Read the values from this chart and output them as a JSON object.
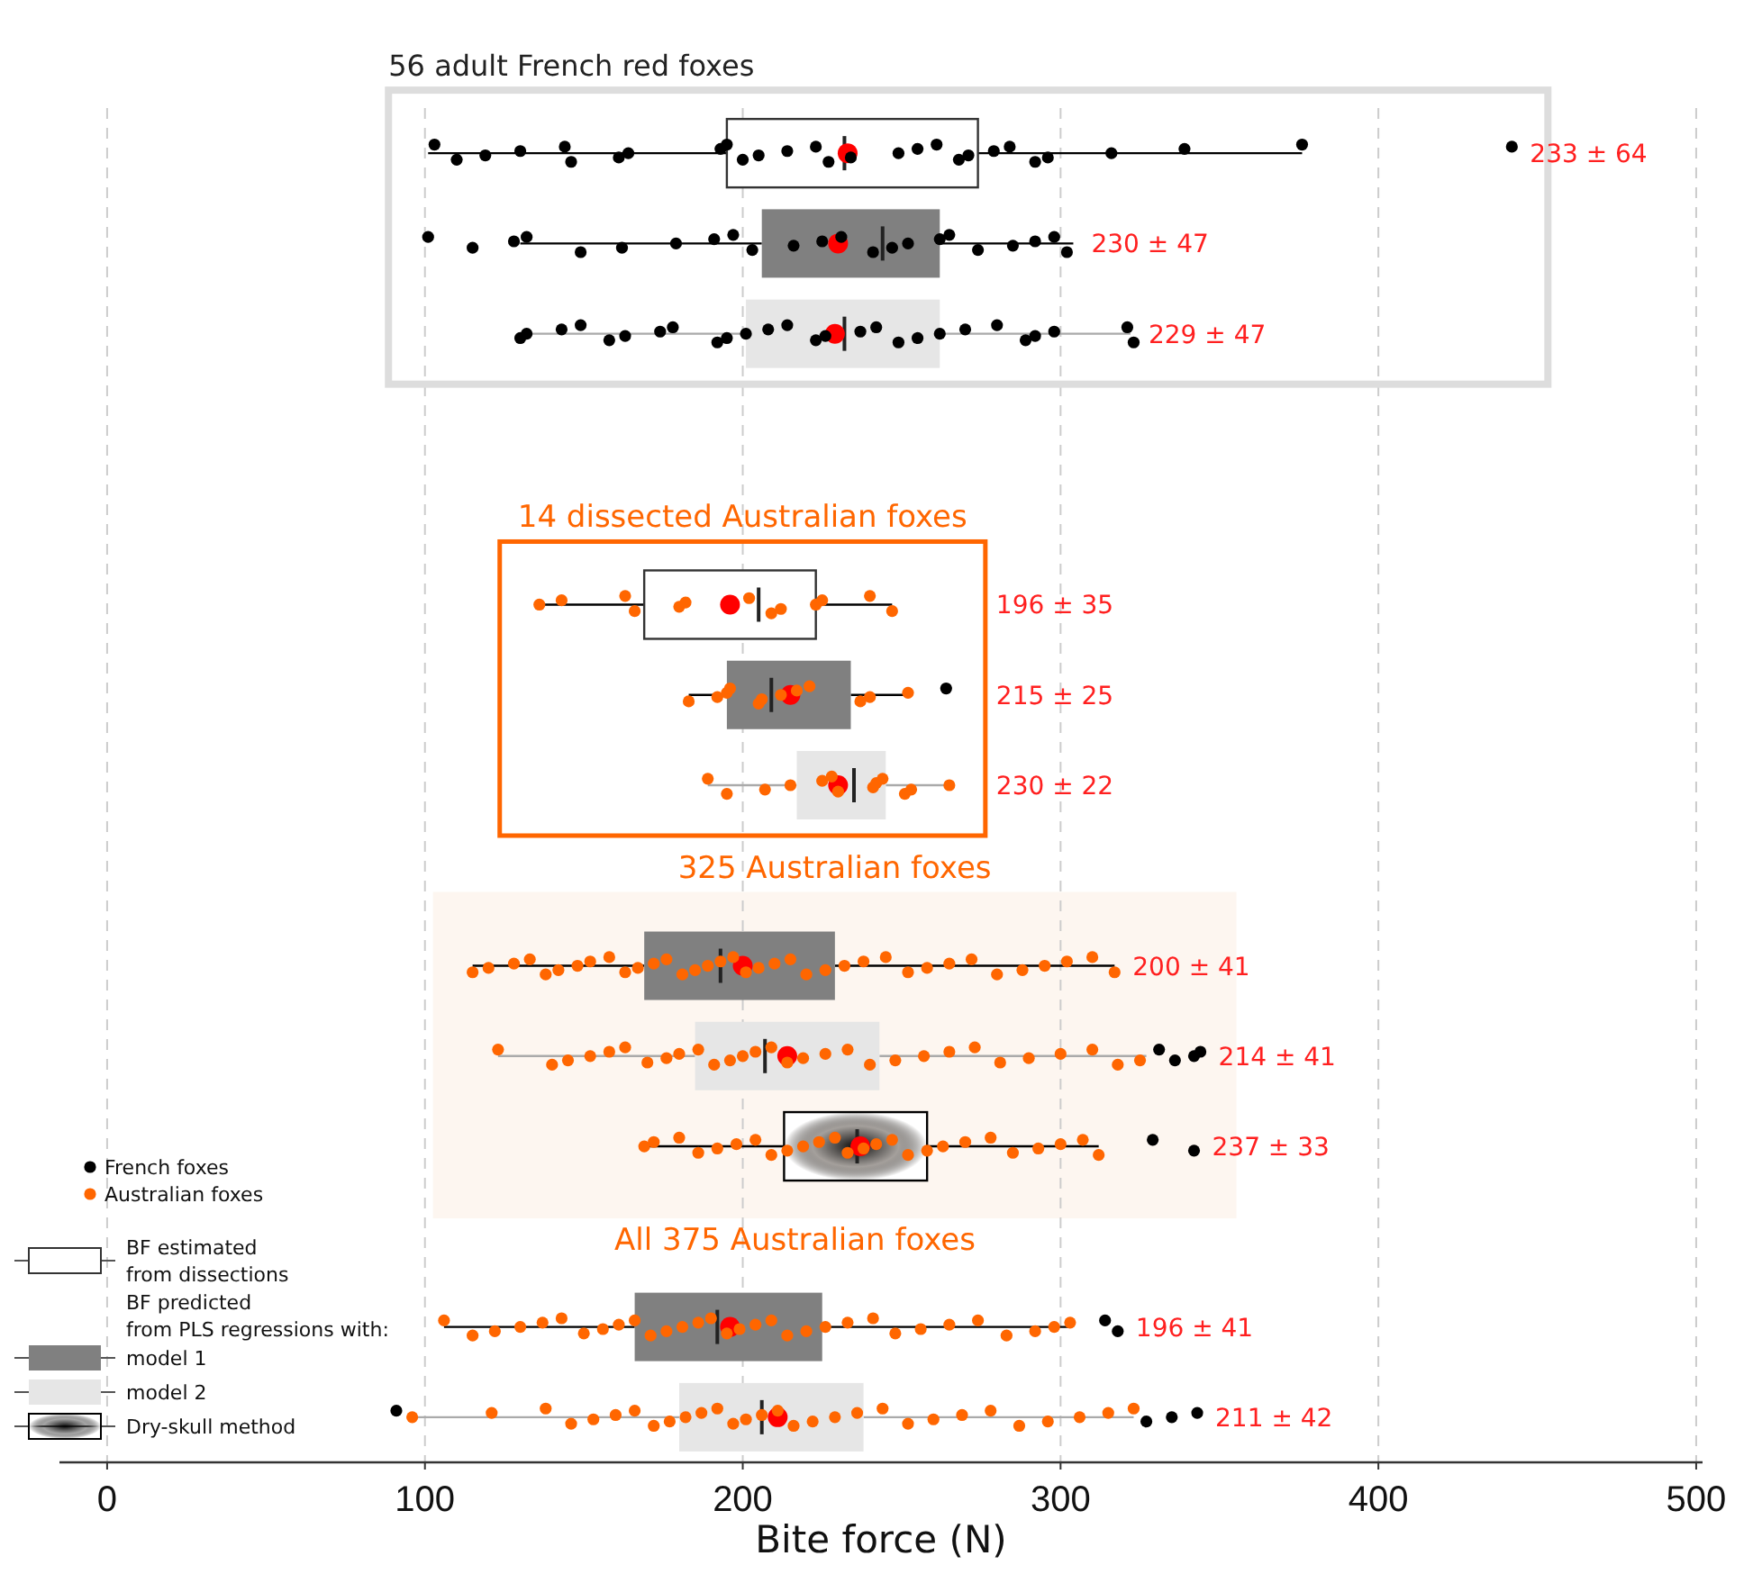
{
  "chart_data": {
    "type": "box",
    "orientation": "horizontal",
    "xlabel": "Bite force (N)",
    "categories": [
      null,
      null,
      null,
      null,
      null,
      null,
      null,
      null,
      null,
      null,
      null,
      null,
      null,
      null,
      null
    ],
    "xlim": [
      -15,
      502
    ],
    "xticks": [
      0,
      100,
      200,
      300,
      400,
      500
    ],
    "grid": "x",
    "legend": "bottom left",
    "annotations": [
      "56 adult French red foxes",
      "14 dissected Australian foxes",
      "325 Australian foxes",
      "All 375 Australian foxes",
      "BF predicted from PLS regressions with:"
    ],
    "series": [
      {
        "name": "French foxes",
        "type": "scatter",
        "color": "#000000",
        "values": [
          103,
          128,
          130,
          null,
          null,
          null,
          null,
          null,
          null,
          null,
          null,
          null,
          null,
          null,
          null
        ]
      },
      {
        "type": "scatter",
        "color": "#000000",
        "values": [
          110,
          132,
          132,
          null,
          null,
          null,
          null,
          null,
          null,
          null,
          null,
          null,
          null,
          null,
          null
        ]
      },
      {
        "type": "scatter",
        "color": "#000000",
        "values": [
          119,
          149,
          143,
          null,
          null,
          null,
          null,
          null,
          null,
          null,
          null,
          null,
          null,
          null,
          null
        ]
      },
      {
        "type": "scatter",
        "color": "#000000",
        "values": [
          130,
          162,
          149,
          null,
          null,
          null,
          null,
          null,
          null,
          null,
          null,
          null,
          null,
          null,
          null
        ]
      },
      {
        "type": "scatter",
        "color": "#000000",
        "values": [
          144,
          179,
          158,
          null,
          null,
          null,
          null,
          null,
          null,
          null,
          null,
          null,
          null,
          null,
          null
        ]
      },
      {
        "type": "scatter",
        "color": "#000000",
        "values": [
          146,
          191,
          163,
          null,
          null,
          null,
          null,
          null,
          null,
          null,
          null,
          null,
          null,
          null,
          null
        ]
      },
      {
        "type": "scatter",
        "color": "#000000",
        "values": [
          161,
          197,
          174,
          null,
          null,
          null,
          null,
          null,
          null,
          null,
          null,
          null,
          null,
          null,
          null
        ]
      },
      {
        "type": "scatter",
        "color": "#000000",
        "values": [
          164,
          203,
          178,
          null,
          null,
          null,
          null,
          null,
          null,
          null,
          null,
          null,
          null,
          null,
          null
        ]
      },
      {
        "type": "scatter",
        "color": "#000000",
        "values": [
          193,
          216,
          192,
          null,
          null,
          null,
          null,
          null,
          null,
          null,
          null,
          null,
          null,
          null,
          null
        ]
      },
      {
        "type": "scatter",
        "color": "#000000",
        "values": [
          195,
          225,
          195,
          null,
          null,
          null,
          null,
          null,
          null,
          null,
          null,
          null,
          null,
          null,
          null
        ]
      },
      {
        "type": "scatter",
        "color": "#000000",
        "values": [
          200,
          231,
          201,
          null,
          null,
          null,
          null,
          null,
          null,
          null,
          null,
          null,
          null,
          null,
          null
        ]
      },
      {
        "type": "scatter",
        "color": "#000000",
        "values": [
          205,
          241,
          208,
          null,
          null,
          null,
          null,
          null,
          null,
          null,
          null,
          null,
          null,
          null,
          null
        ]
      },
      {
        "type": "scatter",
        "color": "#000000",
        "values": [
          214,
          247,
          214,
          null,
          null,
          null,
          null,
          null,
          null,
          null,
          null,
          null,
          null,
          null,
          null
        ]
      },
      {
        "type": "scatter",
        "color": "#000000",
        "values": [
          223,
          252,
          223,
          null,
          null,
          null,
          null,
          null,
          null,
          null,
          null,
          null,
          null,
          null,
          null
        ]
      },
      {
        "type": "scatter",
        "color": "#000000",
        "values": [
          227,
          262,
          226,
          null,
          null,
          null,
          null,
          null,
          null,
          null,
          null,
          null,
          null,
          null,
          null
        ]
      },
      {
        "type": "scatter",
        "color": "#000000",
        "values": [
          234,
          265,
          237,
          null,
          null,
          null,
          null,
          null,
          null,
          null,
          null,
          null,
          null,
          null,
          null
        ]
      },
      {
        "type": "scatter",
        "color": "#000000",
        "values": [
          249,
          274,
          242,
          null,
          null,
          null,
          null,
          null,
          null,
          null,
          null,
          null,
          null,
          null,
          null
        ]
      },
      {
        "type": "scatter",
        "color": "#000000",
        "values": [
          255,
          285,
          249,
          null,
          null,
          null,
          null,
          null,
          null,
          null,
          null,
          null,
          null,
          null,
          null
        ]
      },
      {
        "type": "scatter",
        "color": "#000000",
        "values": [
          261,
          292,
          255,
          null,
          null,
          null,
          null,
          null,
          null,
          null,
          null,
          null,
          null,
          null,
          null
        ]
      },
      {
        "type": "scatter",
        "color": "#000000",
        "values": [
          268,
          298,
          262,
          null,
          null,
          null,
          null,
          null,
          null,
          null,
          null,
          null,
          null,
          null,
          null
        ]
      },
      {
        "type": "scatter",
        "color": "#000000",
        "values": [
          271,
          302,
          270,
          null,
          null,
          null,
          null,
          null,
          null,
          null,
          null,
          null,
          null,
          null,
          null
        ]
      },
      {
        "type": "scatter",
        "color": "#000000",
        "values": [
          279,
          null,
          280,
          null,
          null,
          null,
          null,
          null,
          null,
          null,
          null,
          null,
          null,
          null,
          null
        ]
      },
      {
        "type": "scatter",
        "color": "#000000",
        "values": [
          284,
          null,
          289,
          null,
          null,
          null,
          null,
          null,
          null,
          null,
          null,
          null,
          null,
          null,
          null
        ]
      },
      {
        "type": "scatter",
        "color": "#000000",
        "values": [
          292,
          null,
          292,
          null,
          null,
          null,
          null,
          null,
          null,
          null,
          null,
          null,
          null,
          null,
          null
        ]
      },
      {
        "type": "scatter",
        "color": "#000000",
        "values": [
          296,
          null,
          298,
          null,
          null,
          null,
          null,
          null,
          null,
          null,
          null,
          null,
          null,
          null,
          null
        ]
      },
      {
        "type": "scatter",
        "color": "#000000",
        "values": [
          316,
          null,
          321,
          null,
          null,
          null,
          null,
          null,
          null,
          null,
          null,
          null,
          null,
          null,
          null
        ]
      },
      {
        "type": "scatter",
        "color": "#000000",
        "values": [
          339,
          null,
          323,
          null,
          null,
          null,
          null,
          null,
          null,
          null,
          null,
          null,
          null,
          null,
          null
        ]
      },
      {
        "type": "scatter",
        "color": "#000000",
        "values": [
          376,
          null,
          null,
          null,
          null,
          null,
          null,
          null,
          null,
          null,
          null,
          null,
          null,
          null,
          null
        ]
      },
      {
        "name": "Australian foxes",
        "type": "scatter",
        "color": "#ff6600",
        "values": [
          null,
          null,
          null,
          null,
          null,
          136,
          183,
          189,
          null,
          115,
          123,
          169,
          null,
          106,
          96
        ]
      },
      {
        "type": "scatter",
        "color": "#ff6600",
        "values": [
          null,
          null,
          null,
          null,
          null,
          143,
          192,
          195,
          null,
          120,
          140,
          172,
          null,
          115,
          121
        ]
      },
      {
        "type": "scatter",
        "color": "#ff6600",
        "values": [
          null,
          null,
          null,
          null,
          null,
          163,
          195,
          207,
          null,
          128,
          145,
          180,
          null,
          122,
          138
        ]
      },
      {
        "type": "scatter",
        "color": "#ff6600",
        "values": [
          null,
          null,
          null,
          null,
          null,
          166,
          196,
          215,
          null,
          133,
          152,
          186,
          null,
          130,
          146
        ]
      },
      {
        "type": "scatter",
        "color": "#ff6600",
        "values": [
          null,
          null,
          null,
          null,
          null,
          180,
          205,
          225,
          null,
          138,
          158,
          192,
          null,
          137,
          153
        ]
      },
      {
        "type": "scatter",
        "color": "#ff6600",
        "values": [
          null,
          null,
          null,
          null,
          null,
          182,
          206,
          228,
          null,
          142,
          163,
          198,
          null,
          143,
          160
        ]
      },
      {
        "type": "scatter",
        "color": "#ff6600",
        "values": [
          null,
          null,
          null,
          null,
          null,
          202,
          212,
          230,
          null,
          148,
          170,
          204,
          null,
          150,
          166
        ]
      },
      {
        "type": "scatter",
        "color": "#ff6600",
        "values": [
          null,
          null,
          null,
          null,
          null,
          209,
          217,
          241,
          null,
          152,
          176,
          209,
          null,
          156,
          172
        ]
      },
      {
        "type": "scatter",
        "color": "#ff6600",
        "values": [
          null,
          null,
          null,
          null,
          null,
          212,
          221,
          242,
          null,
          158,
          180,
          214,
          null,
          161,
          177
        ]
      },
      {
        "type": "scatter",
        "color": "#ff6600",
        "values": [
          null,
          null,
          null,
          null,
          null,
          223,
          237,
          244,
          null,
          163,
          186,
          219,
          null,
          166,
          182
        ]
      },
      {
        "type": "scatter",
        "color": "#ff6600",
        "values": [
          null,
          null,
          null,
          null,
          null,
          225,
          240,
          251,
          null,
          167,
          191,
          224,
          null,
          171,
          187
        ]
      },
      {
        "type": "scatter",
        "color": "#ff6600",
        "values": [
          null,
          null,
          null,
          null,
          null,
          240,
          252,
          253,
          null,
          172,
          196,
          229,
          null,
          176,
          192
        ]
      },
      {
        "type": "scatter",
        "color": "#ff6600",
        "values": [
          null,
          null,
          null,
          null,
          null,
          247,
          null,
          265,
          null,
          176,
          200,
          233,
          null,
          181,
          197
        ]
      },
      {
        "type": "scatter",
        "color": "#ff6600",
        "values": [
          null,
          null,
          null,
          null,
          null,
          null,
          null,
          null,
          null,
          181,
          204,
          238,
          null,
          186,
          201
        ]
      },
      {
        "type": "scatter",
        "color": "#ff6600",
        "values": [
          null,
          null,
          null,
          null,
          null,
          null,
          null,
          null,
          null,
          185,
          209,
          242,
          null,
          190,
          206
        ]
      },
      {
        "type": "scatter",
        "color": "#ff6600",
        "values": [
          null,
          null,
          null,
          null,
          null,
          null,
          null,
          null,
          null,
          189,
          214,
          247,
          null,
          195,
          211
        ]
      },
      {
        "type": "scatter",
        "color": "#ff6600",
        "values": [
          null,
          null,
          null,
          null,
          null,
          null,
          null,
          null,
          null,
          193,
          219,
          252,
          null,
          199,
          216
        ]
      },
      {
        "type": "scatter",
        "color": "#ff6600",
        "values": [
          null,
          null,
          null,
          null,
          null,
          null,
          null,
          null,
          null,
          197,
          226,
          258,
          null,
          204,
          222
        ]
      },
      {
        "type": "scatter",
        "color": "#ff6600",
        "values": [
          null,
          null,
          null,
          null,
          null,
          null,
          null,
          null,
          null,
          201,
          233,
          263,
          null,
          209,
          229
        ]
      },
      {
        "type": "scatter",
        "color": "#ff6600",
        "values": [
          null,
          null,
          null,
          null,
          null,
          null,
          null,
          null,
          null,
          205,
          240,
          270,
          null,
          214,
          236
        ]
      },
      {
        "type": "scatter",
        "color": "#ff6600",
        "values": [
          null,
          null,
          null,
          null,
          null,
          null,
          null,
          null,
          null,
          210,
          248,
          278,
          null,
          220,
          244
        ]
      },
      {
        "type": "scatter",
        "color": "#ff6600",
        "values": [
          null,
          null,
          null,
          null,
          null,
          null,
          null,
          null,
          null,
          215,
          257,
          285,
          null,
          226,
          252
        ]
      },
      {
        "type": "scatter",
        "color": "#ff6600",
        "values": [
          null,
          null,
          null,
          null,
          null,
          null,
          null,
          null,
          null,
          220,
          265,
          293,
          null,
          233,
          260
        ]
      },
      {
        "type": "scatter",
        "color": "#ff6600",
        "values": [
          null,
          null,
          null,
          null,
          null,
          null,
          null,
          null,
          null,
          226,
          273,
          300,
          null,
          241,
          269
        ]
      },
      {
        "type": "scatter",
        "color": "#ff6600",
        "values": [
          null,
          null,
          null,
          null,
          null,
          null,
          null,
          null,
          null,
          232,
          281,
          307,
          null,
          248,
          278
        ]
      },
      {
        "type": "scatter",
        "color": "#ff6600",
        "values": [
          null,
          null,
          null,
          null,
          null,
          null,
          null,
          null,
          null,
          238,
          290,
          312,
          null,
          256,
          287
        ]
      },
      {
        "type": "scatter",
        "color": "#ff6600",
        "values": [
          null,
          null,
          null,
          null,
          null,
          null,
          null,
          null,
          null,
          245,
          300,
          null,
          null,
          265,
          296
        ]
      },
      {
        "type": "scatter",
        "color": "#ff6600",
        "values": [
          null,
          null,
          null,
          null,
          null,
          null,
          null,
          null,
          null,
          252,
          310,
          null,
          null,
          274,
          306
        ]
      },
      {
        "type": "scatter",
        "color": "#ff6600",
        "values": [
          null,
          null,
          null,
          null,
          null,
          null,
          null,
          null,
          null,
          258,
          318,
          null,
          null,
          283,
          315
        ]
      },
      {
        "type": "scatter",
        "color": "#ff6600",
        "values": [
          null,
          null,
          null,
          null,
          null,
          null,
          null,
          null,
          null,
          265,
          325,
          null,
          null,
          292,
          323
        ]
      },
      {
        "type": "scatter",
        "color": "#ff6600",
        "values": [
          null,
          null,
          null,
          null,
          null,
          null,
          null,
          null,
          null,
          272,
          null,
          null,
          null,
          298,
          null
        ]
      },
      {
        "type": "scatter",
        "color": "#ff6600",
        "values": [
          null,
          null,
          null,
          null,
          null,
          null,
          null,
          null,
          null,
          280,
          null,
          null,
          null,
          303,
          null
        ]
      },
      {
        "type": "scatter",
        "color": "#ff6600",
        "values": [
          null,
          null,
          null,
          null,
          null,
          null,
          null,
          null,
          null,
          288,
          null,
          null,
          null,
          null,
          null
        ]
      },
      {
        "type": "scatter",
        "color": "#ff6600",
        "values": [
          null,
          null,
          null,
          null,
          null,
          null,
          null,
          null,
          null,
          295,
          null,
          null,
          null,
          null,
          null
        ]
      },
      {
        "type": "scatter",
        "color": "#ff6600",
        "values": [
          null,
          null,
          null,
          null,
          null,
          null,
          null,
          null,
          null,
          302,
          null,
          null,
          null,
          null,
          null
        ]
      },
      {
        "type": "scatter",
        "color": "#ff6600",
        "values": [
          null,
          null,
          null,
          null,
          null,
          null,
          null,
          null,
          null,
          310,
          null,
          null,
          null,
          null,
          null
        ]
      },
      {
        "type": "scatter",
        "color": "#ff6600",
        "values": [
          null,
          null,
          null,
          null,
          null,
          null,
          null,
          null,
          null,
          317,
          null,
          null,
          null,
          null,
          null
        ]
      },
      {
        "name": "BF estimated from dissections",
        "type": "box",
        "color": "#ffffff",
        "boxes": [
          {
            "low": 101,
            "q1": 195,
            "median": 232,
            "q3": 274,
            "high": 376,
            "mean": 233,
            "outliers": [
              442
            ]
          },
          null,
          null,
          null,
          null,
          {
            "low": 136,
            "q1": 169,
            "median": 205,
            "q3": 223,
            "high": 247,
            "mean": 196
          },
          null,
          null,
          null,
          null,
          null,
          null,
          null,
          null,
          null
        ],
        "value_labels": [
          "233 ± 64",
          null,
          null,
          null,
          null,
          "196 ± 35",
          null,
          null,
          null,
          null,
          null,
          null,
          null,
          null,
          null
        ]
      },
      {
        "name": "model 1",
        "type": "box",
        "color": "#808080",
        "boxes": [
          null,
          {
            "low": 130,
            "q1": 206,
            "median": 244,
            "q3": 262,
            "high": 304,
            "mean": 230,
            "outliers": [
              101,
              115
            ]
          },
          null,
          null,
          null,
          null,
          {
            "low": 183,
            "q1": 195,
            "median": 209,
            "q3": 234,
            "high": 252,
            "mean": 215,
            "outliers": [
              264
            ]
          },
          null,
          null,
          {
            "low": 115,
            "q1": 169,
            "median": 193,
            "q3": 229,
            "high": 317,
            "mean": 200
          },
          null,
          null,
          null,
          {
            "low": 106,
            "q1": 166,
            "median": 192,
            "q3": 225,
            "high": 303,
            "mean": 196,
            "outliers": [
              314,
              318
            ]
          },
          null
        ],
        "value_labels": [
          null,
          "230 ± 47",
          null,
          null,
          null,
          null,
          "215 ± 25",
          null,
          null,
          "200 ± 41",
          null,
          null,
          null,
          "196 ± 41",
          null
        ]
      },
      {
        "name": "model 2",
        "type": "box",
        "color": "#e6e6e6",
        "boxes": [
          null,
          null,
          {
            "low": 130,
            "q1": 201,
            "median": 232,
            "q3": 262,
            "high": 322,
            "mean": 229
          },
          null,
          null,
          null,
          null,
          {
            "low": 189,
            "q1": 217,
            "median": 235,
            "q3": 245,
            "high": 265,
            "mean": 230
          },
          null,
          null,
          {
            "low": 123,
            "q1": 185,
            "median": 207,
            "q3": 243,
            "high": 327,
            "mean": 214,
            "outliers": [
              331,
              336,
              342,
              344
            ]
          },
          null,
          null,
          null,
          {
            "low": 96,
            "q1": 180,
            "median": 206,
            "q3": 238,
            "high": 323,
            "mean": 211,
            "outliers": [
              91,
              327,
              335,
              343
            ]
          }
        ],
        "value_labels": [
          null,
          null,
          "229 ± 47",
          null,
          null,
          null,
          null,
          "230 ± 22",
          null,
          null,
          "214 ± 41",
          null,
          null,
          null,
          "211 ± 42"
        ]
      },
      {
        "name": "Dry-skull method",
        "type": "box",
        "color": "#000000",
        "boxes": [
          null,
          null,
          null,
          null,
          null,
          null,
          null,
          null,
          null,
          null,
          null,
          {
            "low": 169,
            "q1": 213,
            "median": 236,
            "q3": 258,
            "high": 312,
            "mean": 237,
            "outliers": [
              329,
              342
            ]
          },
          null,
          null,
          null
        ],
        "value_labels": [
          null,
          null,
          null,
          null,
          null,
          null,
          null,
          null,
          null,
          null,
          null,
          "237 ± 33",
          null,
          null,
          null
        ]
      }
    ]
  }
}
